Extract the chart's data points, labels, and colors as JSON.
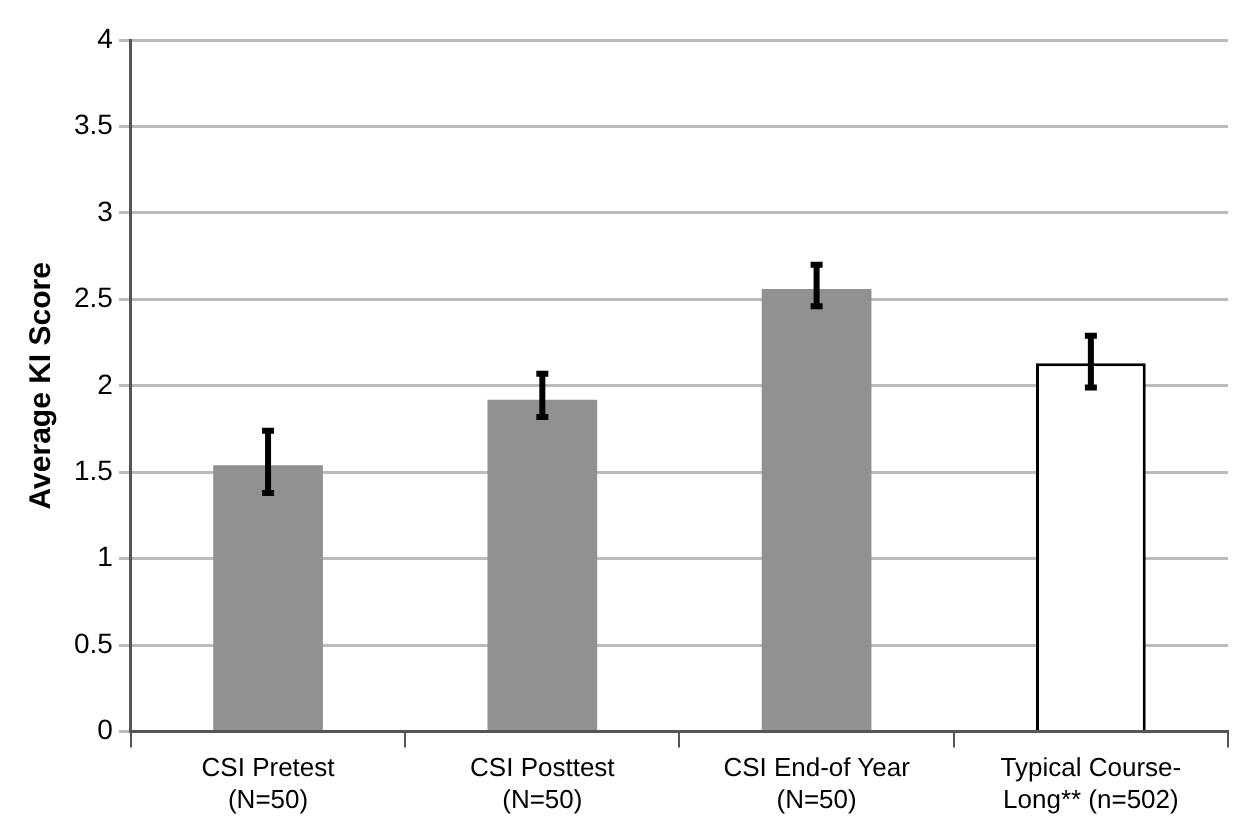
{
  "chart_data": {
    "type": "bar",
    "ylabel": "Average KI Score",
    "categories": [
      "CSI Pretest\n(N=50)",
      "CSI Posttest\n(N=50)",
      "CSI End-of Year\n(N=50)",
      "Typical Course-\nLong** (n=502)"
    ],
    "values": [
      1.54,
      1.92,
      2.56,
      2.13
    ],
    "errors": [
      [
        1.38,
        1.74
      ],
      [
        1.82,
        2.07
      ],
      [
        2.46,
        2.7
      ],
      [
        1.99,
        2.29
      ]
    ],
    "colors": [
      "#919191",
      "#919191",
      "#919191",
      "#ffffff"
    ],
    "ylim": [
      0,
      4
    ],
    "yticks": [
      0,
      0.5,
      1,
      1.5,
      2,
      2.5,
      3,
      3.5,
      4
    ],
    "grid": "y",
    "legend": false
  }
}
